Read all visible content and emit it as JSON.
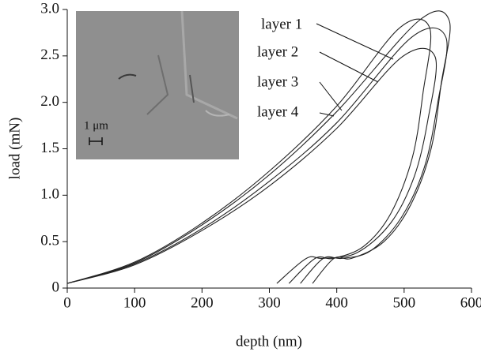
{
  "chart_data": {
    "type": "line",
    "xlabel": "depth (nm)",
    "ylabel": "load (mN)",
    "inset_label": "1 μm",
    "xlim": [
      0,
      600
    ],
    "ylim": [
      0,
      3
    ],
    "xticks": [
      0,
      100,
      200,
      300,
      400,
      500,
      600
    ],
    "yticks": [
      0,
      0.5,
      {
        "value": 1,
        "label": "1.0"
      },
      1.5,
      {
        "value": 2,
        "label": "2.0"
      },
      2.5,
      {
        "value": 3,
        "label": "3.0"
      }
    ],
    "series": [
      {
        "name": "layer 1",
        "color": "#222222",
        "x": [
          0,
          100,
          200,
          300,
          400,
          522,
          567,
          555,
          540,
          510,
          470,
          422,
          396,
          364
        ],
        "values": [
          0.05,
          0.27,
          0.68,
          1.22,
          1.9,
          2.88,
          2.88,
          2.2,
          1.5,
          0.9,
          0.5,
          0.32,
          0.32,
          0.05
        ]
      },
      {
        "name": "layer 2",
        "color": "#222222",
        "x": [
          0,
          100,
          200,
          300,
          400,
          493,
          538,
          528,
          512,
          480,
          440,
          395,
          368,
          329
        ],
        "values": [
          0.05,
          0.28,
          0.7,
          1.26,
          1.96,
          2.8,
          2.8,
          2.1,
          1.4,
          0.8,
          0.45,
          0.32,
          0.32,
          0.05
        ]
      },
      {
        "name": "layer 3",
        "color": "#222222",
        "x": [
          0,
          100,
          200,
          300,
          400,
          511,
          562,
          550,
          530,
          495,
          450,
          408,
          380,
          346
        ],
        "values": [
          0.05,
          0.26,
          0.64,
          1.15,
          1.78,
          2.7,
          2.7,
          2.0,
          1.3,
          0.75,
          0.4,
          0.32,
          0.32,
          0.05
        ]
      },
      {
        "name": "layer 4",
        "color": "#222222",
        "x": [
          0,
          100,
          200,
          300,
          400,
          497,
          546,
          535,
          515,
          480,
          430,
          380,
          355,
          311
        ],
        "values": [
          0.05,
          0.25,
          0.62,
          1.1,
          1.72,
          2.49,
          2.49,
          1.8,
          1.2,
          0.7,
          0.38,
          0.32,
          0.32,
          0.05
        ]
      }
    ]
  }
}
